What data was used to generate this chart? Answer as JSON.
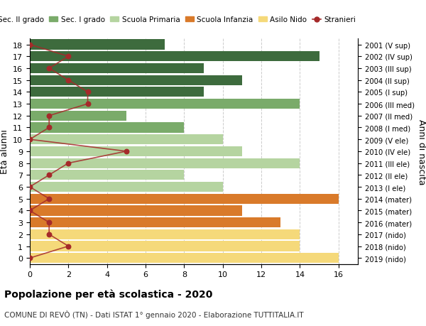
{
  "ages": [
    0,
    1,
    2,
    3,
    4,
    5,
    6,
    7,
    8,
    9,
    10,
    11,
    12,
    13,
    14,
    15,
    16,
    17,
    18
  ],
  "years_bottom_to_top": [
    "2019 (nido)",
    "2018 (nido)",
    "2017 (nido)",
    "2016 (mater)",
    "2015 (mater)",
    "2014 (mater)",
    "2013 (I ele)",
    "2012 (II ele)",
    "2011 (III ele)",
    "2010 (IV ele)",
    "2009 (V ele)",
    "2008 (I med)",
    "2007 (II med)",
    "2006 (III med)",
    "2005 (I sup)",
    "2004 (II sup)",
    "2003 (III sup)",
    "2002 (IV sup)",
    "2001 (V sup)"
  ],
  "bar_values": [
    16,
    14,
    14,
    13,
    11,
    16,
    10,
    8,
    14,
    11,
    10,
    8,
    5,
    14,
    9,
    11,
    9,
    15,
    7
  ],
  "bar_colors": [
    "#f5d97a",
    "#f5d97a",
    "#f5d97a",
    "#d97a2a",
    "#d97a2a",
    "#d97a2a",
    "#b5d4a0",
    "#b5d4a0",
    "#b5d4a0",
    "#b5d4a0",
    "#b5d4a0",
    "#7aab6a",
    "#7aab6a",
    "#7aab6a",
    "#3d6b3d",
    "#3d6b3d",
    "#3d6b3d",
    "#3d6b3d",
    "#3d6b3d"
  ],
  "stranieri_values": [
    0,
    2,
    1,
    1,
    0,
    1,
    0,
    1,
    2,
    5,
    0,
    1,
    1,
    3,
    3,
    2,
    1,
    2,
    0
  ],
  "stranieri_color": "#a52a2a",
  "legend_labels": [
    "Sec. II grado",
    "Sec. I grado",
    "Scuola Primaria",
    "Scuola Infanzia",
    "Asilo Nido",
    "Stranieri"
  ],
  "legend_colors": [
    "#3d6b3d",
    "#7aab6a",
    "#b5d4a0",
    "#d97a2a",
    "#f5d97a",
    "#a52a2a"
  ],
  "ylabel_left": "Età alunni",
  "ylabel_right": "Anni di nascita",
  "title": "Popolazione per età scolastica - 2020",
  "subtitle": "COMUNE DI REVÒ (TN) - Dati ISTAT 1° gennaio 2020 - Elaborazione TUTTITALIA.IT",
  "xlim": [
    0,
    17
  ],
  "xticks": [
    0,
    2,
    4,
    6,
    8,
    10,
    12,
    14,
    16
  ],
  "background_color": "#ffffff",
  "grid_color": "#cccccc"
}
